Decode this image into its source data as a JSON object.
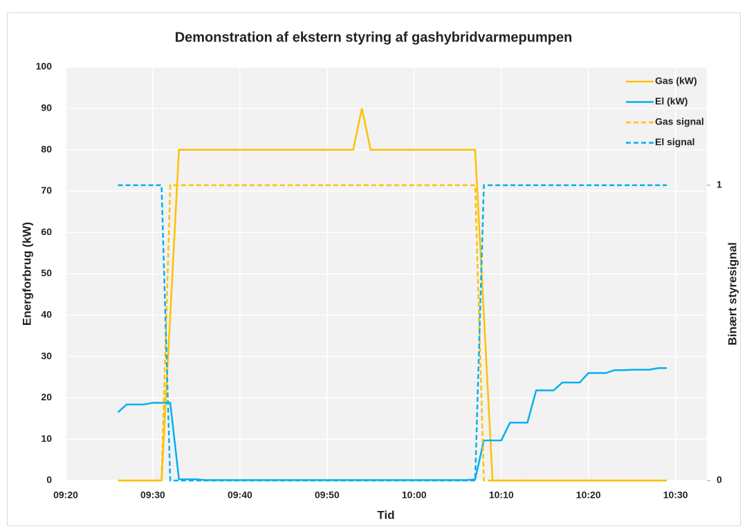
{
  "chart_data": {
    "type": "line",
    "title": "Demonstration af ekstern styring af gashybridvarmepumpen",
    "x_label": "Tid",
    "y_label": "Energforbrug (kW)",
    "y2_label": "Binært styresignal",
    "x": [
      566,
      567,
      568,
      569,
      570,
      571,
      572,
      573,
      574,
      575,
      576,
      577,
      578,
      579,
      580,
      581,
      582,
      583,
      584,
      585,
      586,
      587,
      588,
      589,
      590,
      591,
      592,
      593,
      594,
      595,
      596,
      597,
      598,
      599,
      600,
      601,
      602,
      603,
      604,
      605,
      606,
      607,
      608,
      609,
      610,
      611,
      612,
      613,
      614,
      615,
      616,
      617,
      618,
      619,
      620,
      621,
      622,
      623,
      624,
      625,
      626,
      627,
      628,
      629
    ],
    "series": [
      {
        "name": "Gas (kW)",
        "color": "#ffc000",
        "style": "solid",
        "values": [
          0,
          0,
          0,
          0,
          0,
          0,
          40,
          80,
          80,
          80,
          80,
          80,
          80,
          80,
          80,
          80,
          80,
          80,
          80,
          80,
          80,
          80,
          80,
          80,
          80,
          80,
          80,
          80,
          90,
          80,
          80,
          80,
          80,
          80,
          80,
          80,
          80,
          80,
          80,
          80,
          80,
          80,
          40,
          0,
          0,
          0,
          0,
          0,
          0,
          0,
          0,
          0,
          0,
          0,
          0,
          0,
          0,
          0,
          0,
          0,
          0,
          0,
          0,
          0
        ]
      },
      {
        "name": "El (kW)",
        "color": "#00b0f0",
        "style": "solid",
        "values": [
          16.5,
          18.4,
          18.4,
          18.4,
          18.8,
          18.8,
          18.8,
          0.3,
          0.3,
          0.3,
          0.1,
          0.1,
          0.1,
          0.1,
          0.1,
          0.1,
          0.1,
          0.1,
          0.1,
          0.1,
          0.1,
          0.1,
          0.1,
          0.1,
          0.1,
          0.1,
          0.1,
          0.1,
          0.1,
          0.1,
          0.1,
          0.1,
          0.1,
          0.1,
          0.1,
          0.1,
          0.1,
          0.1,
          0.1,
          0.1,
          0.1,
          0.3,
          9.7,
          9.7,
          9.7,
          14,
          14,
          14,
          21.8,
          21.8,
          21.8,
          23.7,
          23.7,
          23.7,
          26,
          26,
          26,
          26.7,
          26.7,
          26.8,
          26.8,
          26.8,
          27.2,
          27.2
        ]
      },
      {
        "name": "Gas signal",
        "color": "#ffc000",
        "style": "dashed",
        "axis": "y2",
        "values": [
          0,
          0,
          0,
          0,
          0,
          0,
          1,
          1,
          1,
          1,
          1,
          1,
          1,
          1,
          1,
          1,
          1,
          1,
          1,
          1,
          1,
          1,
          1,
          1,
          1,
          1,
          1,
          1,
          1,
          1,
          1,
          1,
          1,
          1,
          1,
          1,
          1,
          1,
          1,
          1,
          1,
          1,
          0,
          0,
          0,
          0,
          0,
          0,
          0,
          0,
          0,
          0,
          0,
          0,
          0,
          0,
          0,
          0,
          0,
          0,
          0,
          0,
          0,
          0
        ]
      },
      {
        "name": "El signal",
        "color": "#00b0f0",
        "style": "dashed",
        "axis": "y2",
        "values": [
          1,
          1,
          1,
          1,
          1,
          1,
          0,
          0,
          0,
          0,
          0,
          0,
          0,
          0,
          0,
          0,
          0,
          0,
          0,
          0,
          0,
          0,
          0,
          0,
          0,
          0,
          0,
          0,
          0,
          0,
          0,
          0,
          0,
          0,
          0,
          0,
          0,
          0,
          0,
          0,
          0,
          0,
          1,
          1,
          1,
          1,
          1,
          1,
          1,
          1,
          1,
          1,
          1,
          1,
          1,
          1,
          1,
          1,
          1,
          1,
          1,
          1,
          1,
          1
        ]
      }
    ],
    "xlim": [
      560,
      633.6
    ],
    "xticks": [
      {
        "value": 560,
        "label": "09:20"
      },
      {
        "value": 570,
        "label": "09:30"
      },
      {
        "value": 580,
        "label": "09:40"
      },
      {
        "value": 590,
        "label": "09:50"
      },
      {
        "value": 600,
        "label": "10:00"
      },
      {
        "value": 610,
        "label": "10:10"
      },
      {
        "value": 620,
        "label": "10:20"
      },
      {
        "value": 630,
        "label": "10:30"
      }
    ],
    "ylim": [
      0,
      100
    ],
    "yticks": [
      0,
      10,
      20,
      30,
      40,
      50,
      60,
      70,
      80,
      90,
      100
    ],
    "y2lim": [
      0,
      1.4
    ],
    "y2ticks": [
      0,
      1
    ],
    "grid": true,
    "legend": "top-right"
  }
}
